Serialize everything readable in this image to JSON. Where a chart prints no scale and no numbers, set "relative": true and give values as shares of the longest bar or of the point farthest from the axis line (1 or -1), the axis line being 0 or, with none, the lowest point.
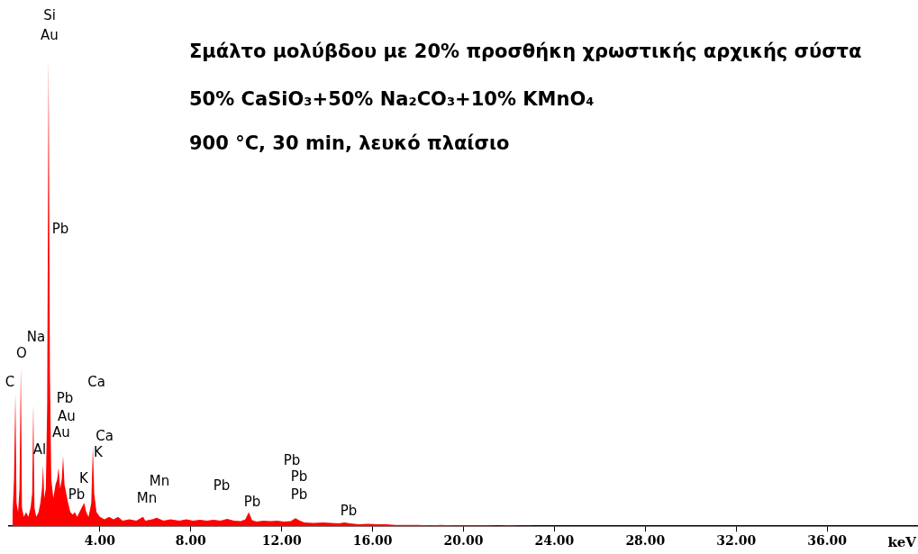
{
  "chart_data": {
    "type": "area",
    "title": "Σμάλτο μολύβδου με 20% προσθήκη χρωστικής αρχικής σύστα",
    "subtitle": "50% CaSiO₃+50% Na₂CO₃+10% KMnO₄",
    "xlabel": "keV",
    "relative": true,
    "grid": false,
    "legend": false,
    "xlim": [
      0,
      40
    ],
    "xticks": [
      {
        "value": 4,
        "label": "4.00"
      },
      {
        "value": 8,
        "label": "8.00"
      },
      {
        "value": 12,
        "label": "12.00"
      },
      {
        "value": 16,
        "label": "16.00"
      },
      {
        "value": 20,
        "label": "20.00"
      },
      {
        "value": 24,
        "label": "24.00"
      },
      {
        "value": 28,
        "label": "28.00"
      },
      {
        "value": 32,
        "label": "32.00"
      },
      {
        "value": 36,
        "label": "36.00"
      }
    ],
    "series": [
      {
        "color": "#ff0000",
        "x": [
          0.15,
          0.22,
          0.28,
          0.33,
          0.4,
          0.46,
          0.52,
          0.57,
          0.65,
          0.75,
          0.85,
          0.95,
          1.02,
          1.07,
          1.12,
          1.2,
          1.3,
          1.38,
          1.45,
          1.5,
          1.55,
          1.62,
          1.68,
          1.74,
          1.8,
          1.86,
          1.95,
          2.05,
          2.12,
          2.18,
          2.25,
          2.32,
          2.38,
          2.44,
          2.52,
          2.6,
          2.7,
          2.8,
          2.9,
          3.0,
          3.1,
          3.2,
          3.31,
          3.4,
          3.5,
          3.62,
          3.69,
          3.75,
          3.85,
          4.0,
          4.2,
          4.4,
          4.6,
          4.8,
          5.0,
          5.3,
          5.6,
          5.9,
          6.0,
          6.3,
          6.5,
          6.8,
          7.1,
          7.5,
          7.8,
          8.1,
          8.4,
          8.7,
          9.0,
          9.3,
          9.6,
          9.9,
          10.2,
          10.4,
          10.55,
          10.7,
          10.9,
          11.2,
          11.5,
          11.8,
          12.1,
          12.4,
          12.6,
          12.8,
          13.0,
          13.4,
          13.8,
          14.2,
          14.5,
          14.76,
          15.0,
          15.4,
          15.8,
          16.2,
          16.6,
          17.0,
          17.5,
          18.0,
          18.5,
          19.0,
          19.5,
          20.0,
          20.5,
          21.0,
          21.5,
          22.0,
          22.5,
          23.0
        ],
        "values": [
          0.02,
          0.1,
          0.285,
          0.05,
          0.03,
          0.08,
          0.34,
          0.04,
          0.02,
          0.03,
          0.02,
          0.04,
          0.07,
          0.26,
          0.04,
          0.02,
          0.03,
          0.05,
          0.08,
          0.13,
          0.06,
          0.08,
          0.26,
          1.0,
          0.33,
          0.1,
          0.06,
          0.09,
          0.1,
          0.125,
          0.08,
          0.1,
          0.15,
          0.09,
          0.07,
          0.05,
          0.03,
          0.025,
          0.03,
          0.02,
          0.03,
          0.04,
          0.05,
          0.03,
          0.02,
          0.05,
          0.17,
          0.07,
          0.03,
          0.02,
          0.015,
          0.02,
          0.015,
          0.02,
          0.012,
          0.015,
          0.012,
          0.02,
          0.012,
          0.015,
          0.018,
          0.012,
          0.015,
          0.012,
          0.015,
          0.012,
          0.014,
          0.012,
          0.014,
          0.012,
          0.016,
          0.012,
          0.011,
          0.015,
          0.03,
          0.013,
          0.01,
          0.012,
          0.011,
          0.012,
          0.01,
          0.011,
          0.017,
          0.012,
          0.008,
          0.007,
          0.008,
          0.007,
          0.006,
          0.008,
          0.006,
          0.004,
          0.005,
          0.004,
          0.004,
          0.003,
          0.003,
          0.003,
          0.002,
          0.003,
          0.002,
          0.002,
          0.002,
          0.002,
          0.001,
          0.002,
          0.001,
          0.001
        ]
      }
    ],
    "annotations": [
      "900 °C, 30 min, λευκό πλαίσιο",
      "Si",
      "Au",
      "Pb",
      "Na",
      "O",
      "C",
      "Ca",
      "Pb",
      "Au",
      "Au",
      "Al",
      "Ca",
      "K",
      "K",
      "Pb",
      "Mn",
      "Mn",
      "Pb",
      "Pb",
      "Pb",
      "Pb",
      "Pb",
      "Pb"
    ]
  }
}
